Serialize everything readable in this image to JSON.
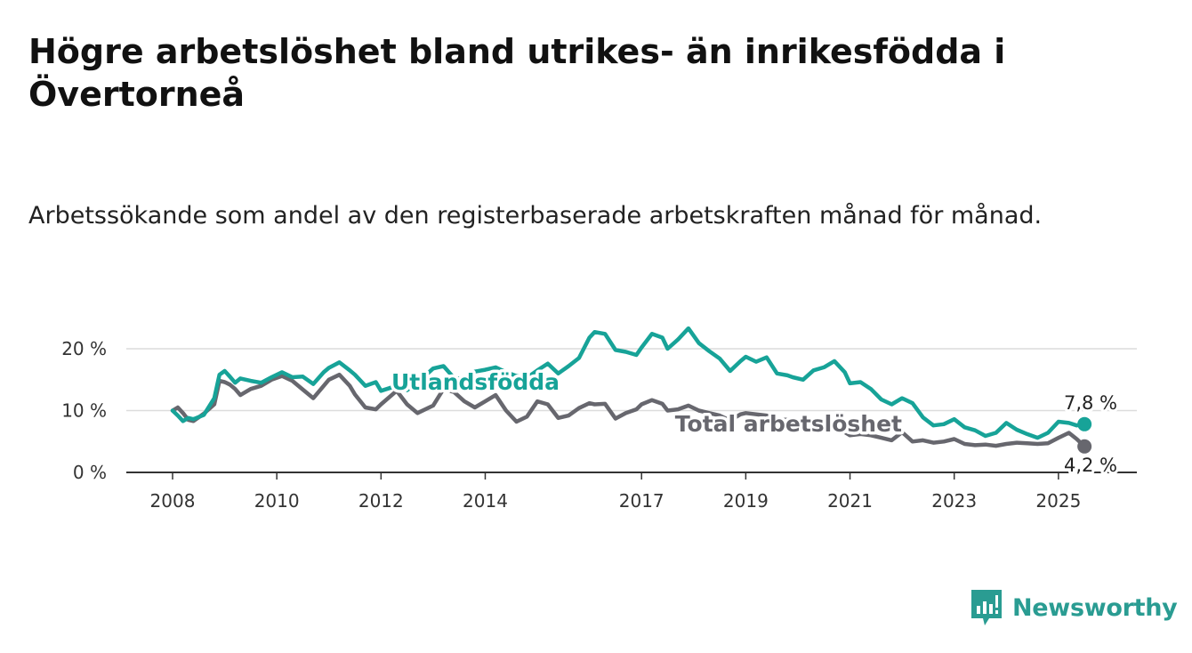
{
  "title": "Högre arbetslöshet bland utrikes- än inrikesfödda i Övertorneå",
  "subtitle": "Arbetssökande som andel av den registerbaserade arbetskraften månad för månad.",
  "brand": {
    "name": "Newsworthy",
    "icon": "newsworthy-logo-icon"
  },
  "chart_data": {
    "type": "line",
    "title": "Högre arbetslöshet bland utrikes- än inrikesfödda i Övertorneå",
    "subtitle": "Arbetssökande som andel av den registerbaserade arbetskraften månad för månad.",
    "xlabel": "",
    "ylabel": "",
    "xlim": [
      2008,
      2025.6
    ],
    "ylim": [
      0,
      20
    ],
    "y_ticks": [
      0,
      10,
      20
    ],
    "y_tick_labels": [
      "0 %",
      "10 %",
      "20 %"
    ],
    "x_ticks": [
      2008,
      2010,
      2012,
      2014,
      2017,
      2019,
      2021,
      2023,
      2025
    ],
    "x_tick_labels": [
      "2008",
      "2010",
      "2012",
      "2014",
      "2017",
      "2019",
      "2021",
      "2023",
      "2025"
    ],
    "grid": "horizontal",
    "legend": "inline labels",
    "series": [
      {
        "name": "Utlandsfödda",
        "color": "#17a398",
        "end_label": "7,8 %",
        "x": [
          2008.0,
          2008.1,
          2008.2,
          2008.3,
          2008.4,
          2008.6,
          2008.8,
          2008.9,
          2009.0,
          2009.1,
          2009.2,
          2009.3,
          2009.5,
          2009.7,
          2009.9,
          2010.1,
          2010.3,
          2010.5,
          2010.7,
          2010.9,
          2011.0,
          2011.2,
          2011.4,
          2011.5,
          2011.7,
          2011.9,
          2012.0,
          2012.3,
          2012.5,
          2012.7,
          2013.0,
          2013.2,
          2013.4,
          2013.6,
          2013.8,
          2014.0,
          2014.2,
          2014.4,
          2014.6,
          2014.8,
          2015.0,
          2015.2,
          2015.4,
          2015.6,
          2015.8,
          2016.0,
          2016.1,
          2016.3,
          2016.5,
          2016.7,
          2016.9,
          2017.0,
          2017.2,
          2017.4,
          2017.5,
          2017.7,
          2017.9,
          2018.1,
          2018.3,
          2018.5,
          2018.7,
          2018.9,
          2019.0,
          2019.2,
          2019.4,
          2019.6,
          2019.8,
          2019.9,
          2020.1,
          2020.3,
          2020.5,
          2020.7,
          2020.9,
          2021.0,
          2021.2,
          2021.4,
          2021.6,
          2021.8,
          2022.0,
          2022.2,
          2022.4,
          2022.6,
          2022.8,
          2023.0,
          2023.2,
          2023.4,
          2023.6,
          2023.8,
          2024.0,
          2024.2,
          2024.4,
          2024.6,
          2024.8,
          2025.0,
          2025.2,
          2025.35,
          2025.5
        ],
        "y": [
          10.0,
          9.2,
          8.3,
          8.8,
          8.6,
          9.3,
          12.0,
          15.8,
          16.4,
          15.5,
          14.5,
          15.2,
          14.8,
          14.5,
          15.4,
          16.2,
          15.4,
          15.5,
          14.3,
          16.2,
          16.9,
          17.8,
          16.5,
          15.8,
          14.0,
          14.6,
          13.2,
          14.0,
          13.3,
          14.5,
          16.8,
          17.2,
          15.3,
          15.1,
          16.3,
          16.6,
          17.0,
          16.2,
          15.6,
          15.3,
          16.5,
          17.6,
          16.0,
          17.2,
          18.5,
          21.8,
          22.7,
          22.4,
          19.8,
          19.5,
          19.0,
          20.2,
          22.4,
          21.8,
          20.0,
          21.5,
          23.3,
          20.9,
          19.6,
          18.4,
          16.4,
          18.0,
          18.7,
          17.9,
          18.6,
          16.0,
          15.7,
          15.4,
          15.0,
          16.5,
          17.0,
          18.0,
          16.2,
          14.4,
          14.6,
          13.5,
          11.8,
          11.0,
          12.0,
          11.2,
          8.9,
          7.6,
          7.8,
          8.6,
          7.3,
          6.8,
          5.9,
          6.4,
          8.0,
          6.9,
          6.2,
          5.6,
          6.4,
          8.2,
          8.0,
          7.6,
          7.8
        ]
      },
      {
        "name": "Total arbetslöshet",
        "color": "#67676e",
        "end_label": "4,2 %",
        "x": [
          2008.0,
          2008.1,
          2008.2,
          2008.3,
          2008.4,
          2008.6,
          2008.8,
          2008.9,
          2009.0,
          2009.1,
          2009.2,
          2009.3,
          2009.5,
          2009.7,
          2009.9,
          2010.1,
          2010.3,
          2010.5,
          2010.7,
          2010.9,
          2011.0,
          2011.2,
          2011.4,
          2011.5,
          2011.7,
          2011.9,
          2012.0,
          2012.3,
          2012.5,
          2012.7,
          2013.0,
          2013.2,
          2013.4,
          2013.6,
          2013.8,
          2014.0,
          2014.2,
          2014.4,
          2014.6,
          2014.8,
          2015.0,
          2015.2,
          2015.4,
          2015.6,
          2015.8,
          2016.0,
          2016.1,
          2016.3,
          2016.5,
          2016.7,
          2016.9,
          2017.0,
          2017.2,
          2017.4,
          2017.5,
          2017.7,
          2017.9,
          2018.1,
          2018.3,
          2018.5,
          2018.7,
          2018.9,
          2019.0,
          2019.2,
          2019.4,
          2019.6,
          2019.8,
          2019.9,
          2020.1,
          2020.3,
          2020.5,
          2020.7,
          2020.9,
          2021.0,
          2021.2,
          2021.4,
          2021.6,
          2021.8,
          2022.0,
          2022.2,
          2022.4,
          2022.6,
          2022.8,
          2023.0,
          2023.2,
          2023.4,
          2023.6,
          2023.8,
          2024.0,
          2024.2,
          2024.4,
          2024.6,
          2024.8,
          2025.0,
          2025.2,
          2025.35,
          2025.5
        ],
        "y": [
          10.0,
          10.5,
          9.6,
          8.5,
          8.3,
          9.5,
          11.0,
          14.8,
          14.6,
          14.2,
          13.5,
          12.5,
          13.5,
          14.0,
          15.0,
          15.6,
          14.8,
          13.4,
          12.0,
          14.0,
          15.0,
          15.8,
          14.0,
          12.6,
          10.5,
          10.2,
          11.0,
          13.2,
          11.0,
          9.6,
          10.8,
          13.5,
          13.0,
          11.5,
          10.5,
          11.5,
          12.5,
          10.0,
          8.2,
          9.0,
          11.5,
          11.0,
          8.8,
          9.2,
          10.4,
          11.2,
          11.0,
          11.1,
          8.7,
          9.6,
          10.2,
          11.0,
          11.7,
          11.1,
          10.0,
          10.2,
          10.8,
          10.0,
          9.6,
          9.2,
          8.4,
          9.4,
          9.6,
          9.4,
          9.2,
          8.6,
          8.5,
          8.4,
          8.2,
          8.0,
          7.5,
          7.0,
          6.5,
          6.0,
          6.2,
          6.0,
          5.6,
          5.2,
          6.5,
          5.0,
          5.2,
          4.8,
          5.0,
          5.4,
          4.6,
          4.4,
          4.5,
          4.3,
          4.6,
          4.8,
          4.7,
          4.6,
          4.7,
          5.6,
          6.4,
          5.4,
          4.2
        ]
      }
    ]
  }
}
